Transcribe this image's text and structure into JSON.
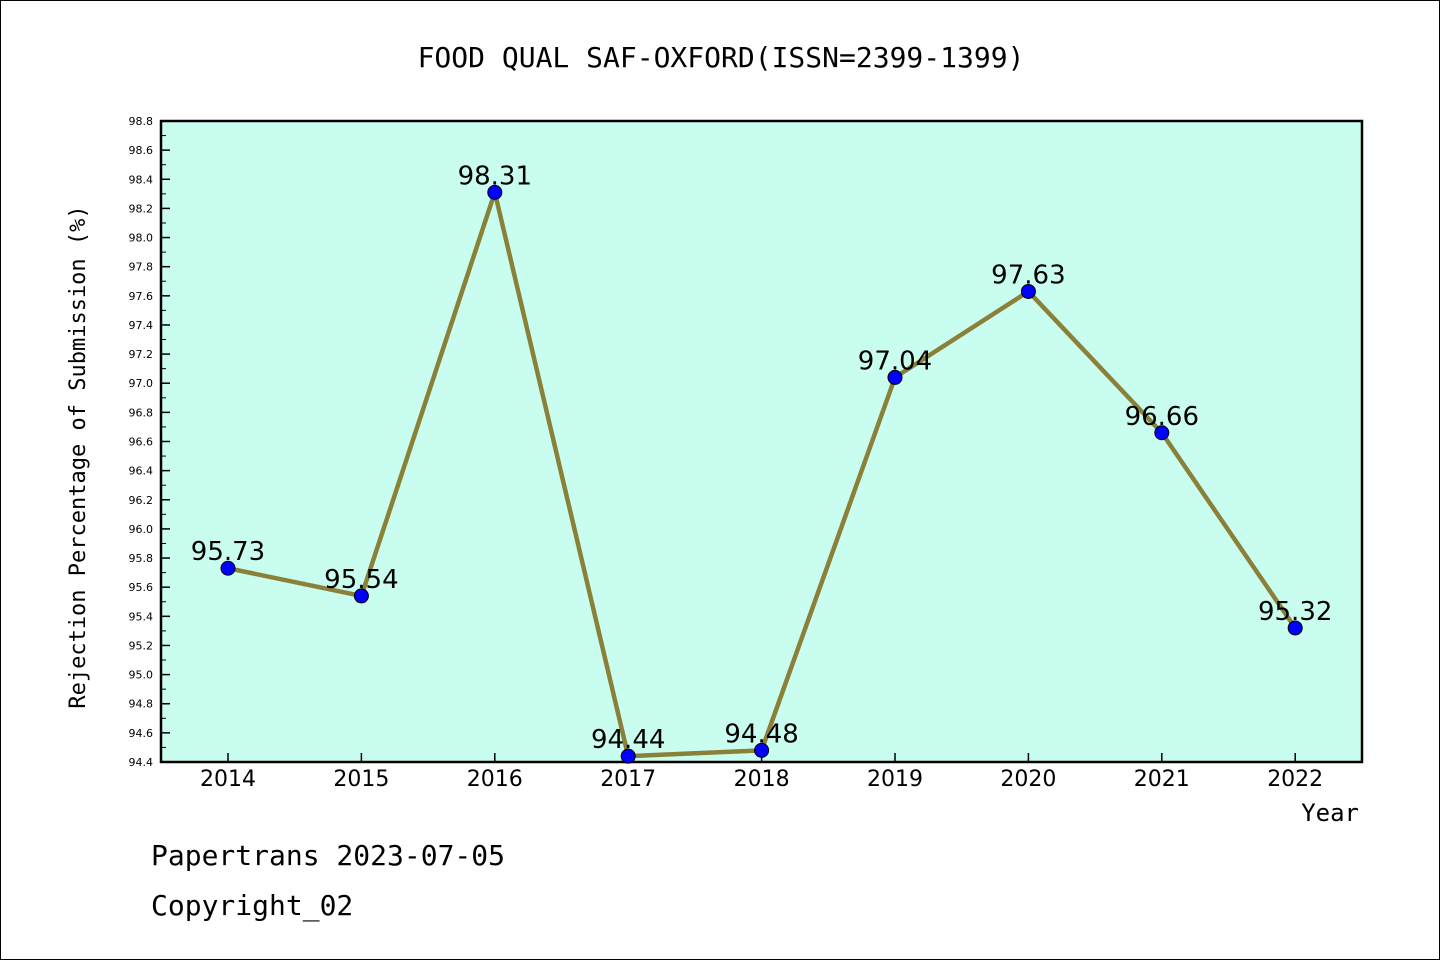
{
  "chart_data": {
    "type": "line",
    "title": "FOOD QUAL SAF-OXFORD(ISSN=2399-1399)",
    "xlabel": "Year",
    "ylabel": "Rejection Percentage of Submission (%)",
    "categories": [
      "2014",
      "2015",
      "2016",
      "2017",
      "2018",
      "2019",
      "2020",
      "2021",
      "2022"
    ],
    "series": [
      {
        "values": [
          95.73,
          95.54,
          98.31,
          94.44,
          94.48,
          97.04,
          97.63,
          96.66,
          95.32
        ],
        "labels": [
          "95.73",
          "95.54",
          "98.31",
          "94.44",
          "94.48",
          "97.04",
          "97.63",
          "96.66",
          "95.32"
        ]
      }
    ],
    "ylim": [
      94.4,
      98.8
    ],
    "yticks": [
      "94.4",
      "94.6",
      "94.8",
      "95.0",
      "95.2",
      "95.4",
      "95.6",
      "95.8",
      "96.0",
      "96.2",
      "96.4",
      "96.6",
      "96.8",
      "97.0",
      "97.2",
      "97.4",
      "97.6",
      "97.8",
      "98.0",
      "98.2",
      "98.4",
      "98.6",
      "98.8"
    ],
    "grid": false,
    "colors": {
      "plot_background": "#c8fdf0",
      "line": "#8b8038",
      "marker": "#0000ff"
    }
  },
  "footer": {
    "line1": "Papertrans 2023-07-05",
    "line2": "Copyright_02"
  }
}
